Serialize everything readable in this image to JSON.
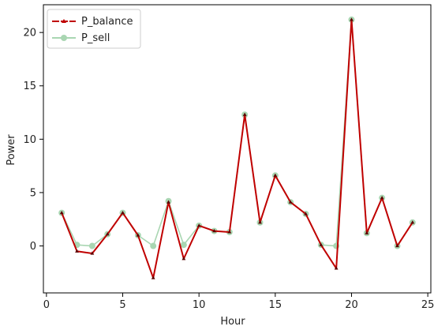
{
  "chart_data": {
    "type": "line",
    "title": "",
    "xlabel": "Hour",
    "ylabel": "Power",
    "xlim": [
      -0.2,
      25.2
    ],
    "ylim": [
      -4.4,
      22.6
    ],
    "xticks": [
      0,
      5,
      10,
      15,
      20,
      25
    ],
    "yticks": [
      0,
      5,
      10,
      15,
      20
    ],
    "grid": false,
    "legend_position": "top-left",
    "series": [
      {
        "name": "P_balance",
        "color": "#c00000",
        "marker": "triangle",
        "x": [
          1,
          2,
          3,
          4,
          5,
          6,
          7,
          8,
          9,
          10,
          11,
          12,
          13,
          14,
          15,
          16,
          17,
          18,
          19,
          20,
          21,
          22,
          23,
          24
        ],
        "y": [
          3.1,
          -0.5,
          -0.7,
          1.1,
          3.1,
          1.0,
          -3.0,
          4.1,
          -1.2,
          1.9,
          1.4,
          1.3,
          12.3,
          2.2,
          6.6,
          4.1,
          3.0,
          0.1,
          -2.1,
          21.2,
          1.2,
          4.5,
          0.0,
          2.2
        ]
      },
      {
        "name": "P_sell",
        "color": "#a9d6b2",
        "marker": "circle",
        "x": [
          1,
          2,
          3,
          4,
          5,
          6,
          7,
          8,
          9,
          10,
          11,
          12,
          13,
          14,
          15,
          16,
          17,
          18,
          19,
          20,
          21,
          22,
          23,
          24
        ],
        "y": [
          3.1,
          0.1,
          0.0,
          1.1,
          3.1,
          1.0,
          0.0,
          4.2,
          0.1,
          1.9,
          1.4,
          1.3,
          12.3,
          2.2,
          6.6,
          4.1,
          3.0,
          0.1,
          0.0,
          21.2,
          1.2,
          4.5,
          0.0,
          2.2
        ]
      }
    ]
  }
}
